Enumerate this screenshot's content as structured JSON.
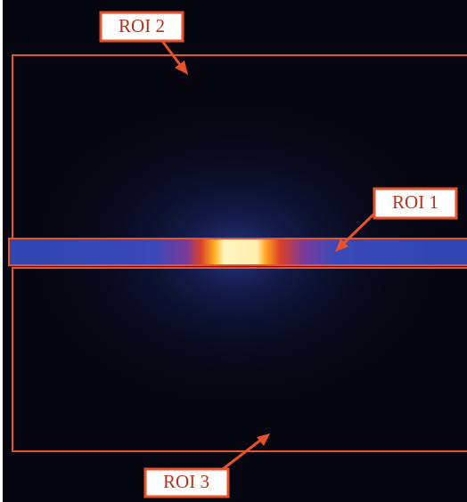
{
  "regions": [
    {
      "label": "ROI 1"
    },
    {
      "label": "ROI 2"
    },
    {
      "label": "ROI 3"
    }
  ]
}
